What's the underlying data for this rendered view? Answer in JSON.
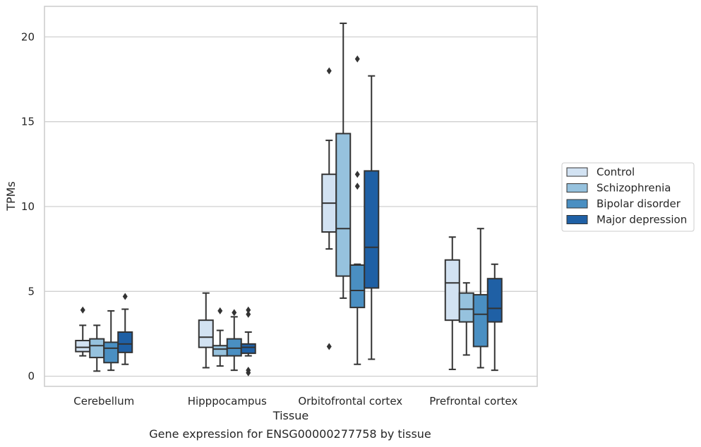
{
  "caption": "Gene expression for ENSG00000277758 by tissue",
  "colors": {
    "Control": "#d2e2f2",
    "Schizophrenia": "#96c2de",
    "Bipolar disorder": "#4a8fc2",
    "Major depression": "#1f60a5",
    "line": "#333333",
    "grid": "#cccccc",
    "frame": "#cccccc"
  },
  "chart_data": {
    "type": "box",
    "xlabel": "Tissue",
    "ylabel": "TPMs",
    "ylim": [
      -0.6,
      21.8
    ],
    "yticks": [
      0,
      5,
      10,
      15,
      20
    ],
    "grid": "horizontal",
    "legend_position": "right",
    "categories": [
      "Cerebellum",
      "Hipppocampus",
      "Orbitofrontal cortex",
      "Prefrontal cortex"
    ],
    "series": [
      {
        "name": "Control",
        "boxes": [
          {
            "whislo": 1.2,
            "q1": 1.45,
            "med": 1.7,
            "q3": 2.1,
            "whishi": 3.0,
            "fliers": [
              3.9
            ]
          },
          {
            "whislo": 0.5,
            "q1": 1.7,
            "med": 2.3,
            "q3": 3.3,
            "whishi": 4.9,
            "fliers": []
          },
          {
            "whislo": 7.5,
            "q1": 8.5,
            "med": 10.2,
            "q3": 11.9,
            "whishi": 13.9,
            "fliers": [
              18.0,
              1.75
            ]
          },
          {
            "whislo": 0.4,
            "q1": 3.3,
            "med": 5.5,
            "q3": 6.85,
            "whishi": 8.2,
            "fliers": []
          }
        ]
      },
      {
        "name": "Schizophrenia",
        "boxes": [
          {
            "whislo": 0.3,
            "q1": 1.1,
            "med": 1.8,
            "q3": 2.2,
            "whishi": 3.0,
            "fliers": []
          },
          {
            "whislo": 0.6,
            "q1": 1.2,
            "med": 1.6,
            "q3": 1.8,
            "whishi": 2.7,
            "fliers": [
              3.85
            ]
          },
          {
            "whislo": 4.6,
            "q1": 5.9,
            "med": 8.7,
            "q3": 14.3,
            "whishi": 20.8,
            "fliers": []
          },
          {
            "whislo": 1.25,
            "q1": 3.2,
            "med": 3.95,
            "q3": 4.9,
            "whishi": 5.5,
            "fliers": []
          }
        ]
      },
      {
        "name": "Bipolar disorder",
        "boxes": [
          {
            "whislo": 0.35,
            "q1": 0.8,
            "med": 1.65,
            "q3": 2.0,
            "whishi": 3.85,
            "fliers": []
          },
          {
            "whislo": 0.35,
            "q1": 1.2,
            "med": 1.65,
            "q3": 2.2,
            "whishi": 3.5,
            "fliers": [
              3.75
            ]
          },
          {
            "whislo": 0.7,
            "q1": 4.05,
            "med": 5.05,
            "q3": 6.55,
            "whishi": 6.6,
            "fliers": [
              18.7,
              11.9,
              11.2
            ]
          },
          {
            "whislo": 0.5,
            "q1": 1.75,
            "med": 3.65,
            "q3": 4.8,
            "whishi": 8.7,
            "fliers": []
          }
        ]
      },
      {
        "name": "Major depression",
        "boxes": [
          {
            "whislo": 0.7,
            "q1": 1.4,
            "med": 1.9,
            "q3": 2.6,
            "whishi": 3.95,
            "fliers": [
              4.7
            ]
          },
          {
            "whislo": 1.2,
            "q1": 1.35,
            "med": 1.7,
            "q3": 1.9,
            "whishi": 2.6,
            "fliers": [
              3.9,
              3.65,
              0.35,
              0.2
            ]
          },
          {
            "whislo": 1.0,
            "q1": 5.2,
            "med": 7.6,
            "q3": 12.1,
            "whishi": 17.7,
            "fliers": []
          },
          {
            "whislo": 0.35,
            "q1": 3.2,
            "med": 4.0,
            "q3": 5.75,
            "whishi": 6.6,
            "fliers": []
          }
        ]
      }
    ]
  }
}
